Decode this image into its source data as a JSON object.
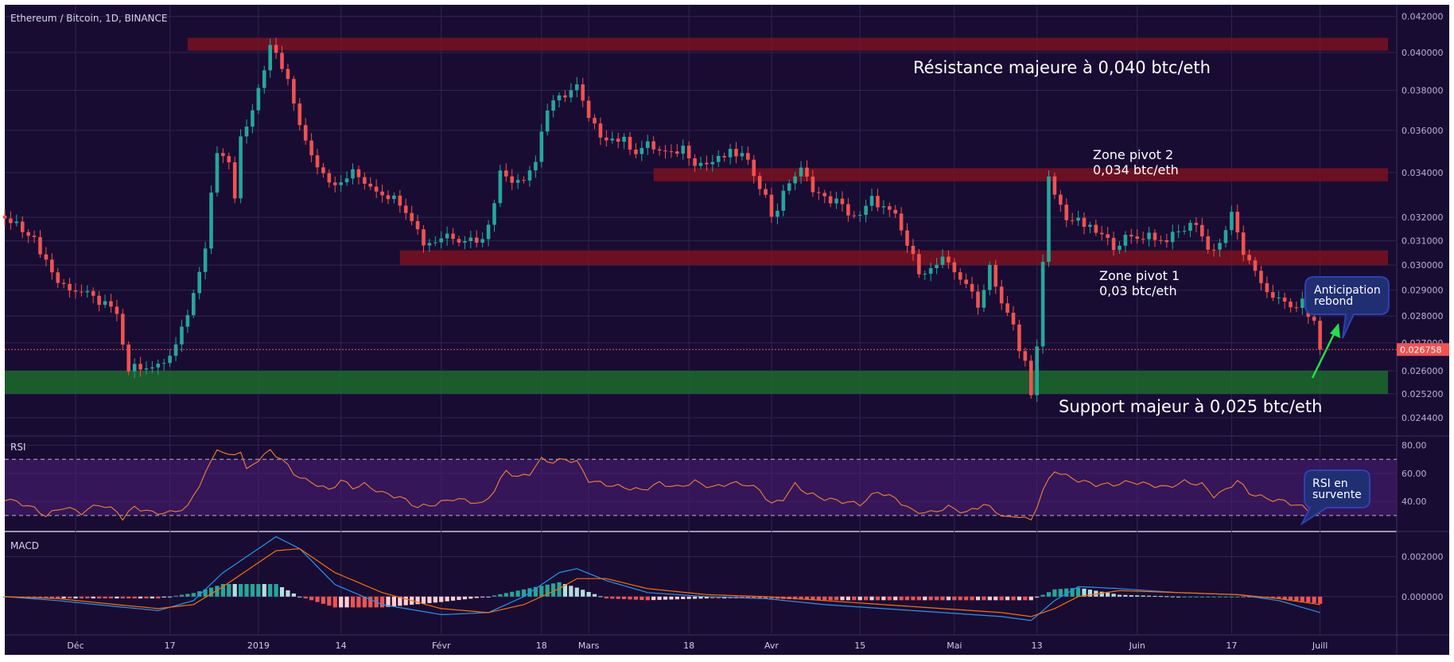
{
  "chart_data": [
    {
      "type": "candlestick",
      "title": "Ethereum / Bitcoin, 1D, BINANCE",
      "ylim": [
        0.0237,
        0.0423
      ],
      "y_scale": "log",
      "y_ticks": [
        "0.042000",
        "0.040000",
        "0.038000",
        "0.036000",
        "0.034000",
        "0.032000",
        "0.031000",
        "0.030000",
        "0.029000",
        "0.028000",
        "0.027000",
        "0.026000",
        "0.025200",
        "0.024400"
      ],
      "last_price_label": "0.026758",
      "x_ticks": [
        "Déc",
        "17",
        "2019",
        "14",
        "Févr",
        "18",
        "Mars",
        "18",
        "Avr",
        "15",
        "Mai",
        "13",
        "Juin",
        "17",
        "Juill"
      ],
      "x_tick_days": [
        8,
        24,
        39,
        53,
        70,
        87,
        95,
        112,
        126,
        141,
        157,
        171,
        188,
        204,
        219
      ],
      "x_range_days": [
        -4,
        232
      ],
      "close_by_day": [
        [
          -4,
          0.0319
        ],
        [
          0,
          0.0314
        ],
        [
          3,
          0.0302
        ],
        [
          5,
          0.0293
        ],
        [
          8,
          0.029
        ],
        [
          10,
          0.0288
        ],
        [
          13,
          0.0284
        ],
        [
          15,
          0.0281
        ],
        [
          16,
          0.0268
        ],
        [
          17,
          0.026
        ],
        [
          18,
          0.0262
        ],
        [
          20,
          0.026
        ],
        [
          23,
          0.0263
        ],
        [
          25,
          0.027
        ],
        [
          27,
          0.0282
        ],
        [
          28,
          0.029
        ],
        [
          30,
          0.0305
        ],
        [
          31,
          0.033
        ],
        [
          32,
          0.035
        ],
        [
          34,
          0.0346
        ],
        [
          35,
          0.0328
        ],
        [
          36,
          0.0355
        ],
        [
          37,
          0.036
        ],
        [
          39,
          0.038
        ],
        [
          40,
          0.039
        ],
        [
          41,
          0.0402
        ],
        [
          42,
          0.04
        ],
        [
          44,
          0.0385
        ],
        [
          45,
          0.0372
        ],
        [
          47,
          0.0355
        ],
        [
          49,
          0.0344
        ],
        [
          51,
          0.0337
        ],
        [
          52,
          0.0333
        ],
        [
          55,
          0.034
        ],
        [
          57,
          0.0336
        ],
        [
          60,
          0.0331
        ],
        [
          63,
          0.0327
        ],
        [
          65,
          0.032
        ],
        [
          67,
          0.0309
        ],
        [
          69,
          0.031
        ],
        [
          71,
          0.0313
        ],
        [
          73,
          0.0311
        ],
        [
          75,
          0.0311
        ],
        [
          77,
          0.031
        ],
        [
          78,
          0.0318
        ],
        [
          79,
          0.0328
        ],
        [
          80,
          0.034
        ],
        [
          82,
          0.0337
        ],
        [
          84,
          0.0338
        ],
        [
          86,
          0.0345
        ],
        [
          87,
          0.036
        ],
        [
          88,
          0.037
        ],
        [
          90,
          0.0376
        ],
        [
          91,
          0.0378
        ],
        [
          93,
          0.0382
        ],
        [
          95,
          0.0365
        ],
        [
          97,
          0.0358
        ],
        [
          99,
          0.0356
        ],
        [
          101,
          0.0355
        ],
        [
          103,
          0.035
        ],
        [
          105,
          0.0353
        ],
        [
          107,
          0.035
        ],
        [
          109,
          0.0348
        ],
        [
          111,
          0.0352
        ],
        [
          113,
          0.0345
        ],
        [
          115,
          0.0344
        ],
        [
          117,
          0.0346
        ],
        [
          119,
          0.0349
        ],
        [
          121,
          0.0348
        ],
        [
          123,
          0.034
        ],
        [
          125,
          0.0329
        ],
        [
          126,
          0.0321
        ],
        [
          127,
          0.0324
        ],
        [
          129,
          0.0336
        ],
        [
          131,
          0.0341
        ],
        [
          133,
          0.0333
        ],
        [
          135,
          0.0328
        ],
        [
          137,
          0.0327
        ],
        [
          139,
          0.0322
        ],
        [
          141,
          0.032
        ],
        [
          143,
          0.0328
        ],
        [
          145,
          0.0324
        ],
        [
          147,
          0.032
        ],
        [
          149,
          0.0308
        ],
        [
          151,
          0.0298
        ],
        [
          153,
          0.0298
        ],
        [
          155,
          0.0302
        ],
        [
          157,
          0.0297
        ],
        [
          159,
          0.0293
        ],
        [
          161,
          0.0283
        ],
        [
          163,
          0.03
        ],
        [
          165,
          0.0285
        ],
        [
          167,
          0.0276
        ],
        [
          168,
          0.0267
        ],
        [
          169,
          0.0263
        ],
        [
          170,
          0.0253
        ],
        [
          171,
          0.0268
        ],
        [
          172,
          0.03
        ],
        [
          173,
          0.0337
        ],
        [
          174,
          0.033
        ],
        [
          176,
          0.032
        ],
        [
          178,
          0.0318
        ],
        [
          180,
          0.0315
        ],
        [
          182,
          0.0312
        ],
        [
          184,
          0.0308
        ],
        [
          186,
          0.0311
        ],
        [
          188,
          0.0311
        ],
        [
          190,
          0.0313
        ],
        [
          192,
          0.031
        ],
        [
          194,
          0.0312
        ],
        [
          196,
          0.0315
        ],
        [
          198,
          0.0318
        ],
        [
          199,
          0.0312
        ],
        [
          200,
          0.0306
        ],
        [
          202,
          0.0309
        ],
        [
          204,
          0.0321
        ],
        [
          206,
          0.0305
        ],
        [
          208,
          0.0296
        ],
        [
          210,
          0.029
        ],
        [
          212,
          0.0286
        ],
        [
          214,
          0.0283
        ],
        [
          216,
          0.0285
        ],
        [
          218,
          0.0277
        ],
        [
          219,
          0.0268
        ]
      ],
      "zones": [
        {
          "label": "Résistance majeure à 0,040 btc/eth",
          "low": 0.0401,
          "high": 0.0408,
          "from_day": 27,
          "color": "#7a1220"
        },
        {
          "label": "Zone pivot 2\n0,034 btc/eth",
          "low": 0.0336,
          "high": 0.0342,
          "from_day": 106,
          "color": "#7a1220"
        },
        {
          "label": "Zone pivot 1\n0,03 btc/eth",
          "low": 0.03,
          "high": 0.0306,
          "from_day": 63,
          "color": "#7a1220"
        },
        {
          "label": "Support majeur à 0,025 btc/eth",
          "low": 0.0252,
          "high": 0.026,
          "from_day": -4,
          "color": "#1b6b2a"
        }
      ],
      "annotations": [
        {
          "text": "Anticipation\nrebond"
        },
        {
          "text": "RSI en\nsurvente"
        }
      ],
      "colors": {
        "up": "#26a69a",
        "down": "#ef5350",
        "background": "#190c33",
        "grid": "#2f2550"
      }
    },
    {
      "type": "line",
      "title": "RSI",
      "ylim": [
        22,
        82
      ],
      "y_ticks": [
        "80.00",
        "60.00",
        "40.00"
      ],
      "bands": [
        30,
        70
      ],
      "series": [
        {
          "color": "#e8782f",
          "values_by_day": [
            [
              -4,
              42
            ],
            [
              0,
              37
            ],
            [
              3,
              30
            ],
            [
              6,
              36
            ],
            [
              9,
              32
            ],
            [
              12,
              38
            ],
            [
              15,
              33
            ],
            [
              16,
              28
            ],
            [
              18,
              36
            ],
            [
              21,
              32
            ],
            [
              24,
              32
            ],
            [
              27,
              36
            ],
            [
              29,
              52
            ],
            [
              31,
              68
            ],
            [
              32,
              78
            ],
            [
              34,
              72
            ],
            [
              36,
              76
            ],
            [
              37,
              62
            ],
            [
              39,
              70
            ],
            [
              41,
              76
            ],
            [
              43,
              70
            ],
            [
              45,
              60
            ],
            [
              47,
              55
            ],
            [
              49,
              52
            ],
            [
              51,
              48
            ],
            [
              53,
              55
            ],
            [
              55,
              50
            ],
            [
              57,
              52
            ],
            [
              60,
              46
            ],
            [
              63,
              43
            ],
            [
              66,
              36
            ],
            [
              69,
              38
            ],
            [
              72,
              42
            ],
            [
              75,
              40
            ],
            [
              77,
              38
            ],
            [
              79,
              48
            ],
            [
              81,
              62
            ],
            [
              83,
              57
            ],
            [
              85,
              60
            ],
            [
              87,
              70
            ],
            [
              89,
              68
            ],
            [
              91,
              70
            ],
            [
              93,
              68
            ],
            [
              95,
              55
            ],
            [
              98,
              52
            ],
            [
              101,
              50
            ],
            [
              104,
              48
            ],
            [
              107,
              53
            ],
            [
              110,
              50
            ],
            [
              113,
              54
            ],
            [
              116,
              50
            ],
            [
              119,
              53
            ],
            [
              122,
              52
            ],
            [
              124,
              48
            ],
            [
              126,
              38
            ],
            [
              128,
              42
            ],
            [
              130,
              52
            ],
            [
              132,
              46
            ],
            [
              135,
              42
            ],
            [
              138,
              40
            ],
            [
              141,
              38
            ],
            [
              144,
              47
            ],
            [
              147,
              42
            ],
            [
              150,
              33
            ],
            [
              153,
              32
            ],
            [
              156,
              36
            ],
            [
              159,
              32
            ],
            [
              162,
              38
            ],
            [
              164,
              33
            ],
            [
              166,
              28
            ],
            [
              168,
              30
            ],
            [
              170,
              26
            ],
            [
              172,
              48
            ],
            [
              174,
              62
            ],
            [
              176,
              58
            ],
            [
              178,
              55
            ],
            [
              181,
              52
            ],
            [
              184,
              52
            ],
            [
              187,
              54
            ],
            [
              190,
              52
            ],
            [
              193,
              50
            ],
            [
              196,
              54
            ],
            [
              199,
              52
            ],
            [
              201,
              44
            ],
            [
              203,
              48
            ],
            [
              205,
              55
            ],
            [
              207,
              46
            ],
            [
              210,
              42
            ],
            [
              213,
              40
            ],
            [
              216,
              36
            ],
            [
              219,
              30
            ]
          ]
        }
      ]
    },
    {
      "type": "macd",
      "title": "MACD",
      "ylim": [
        -0.0018,
        0.0031
      ],
      "y_ticks": [
        "0.002000",
        "0.000000"
      ],
      "series": [
        {
          "name": "",
          "color": "#2196f3",
          "values_by_day": [
            [
              -4,
              0
            ],
            [
              5,
              -0.0002
            ],
            [
              15,
              -0.0005
            ],
            [
              22,
              -0.0007
            ],
            [
              28,
              -0.0002
            ],
            [
              33,
              0.0012
            ],
            [
              38,
              0.0022
            ],
            [
              42,
              0.003
            ],
            [
              46,
              0.0024
            ],
            [
              52,
              0.0006
            ],
            [
              60,
              -0.0004
            ],
            [
              70,
              -0.0009
            ],
            [
              78,
              -0.0008
            ],
            [
              84,
              0.0
            ],
            [
              90,
              0.0012
            ],
            [
              93,
              0.0014
            ],
            [
              98,
              0.0008
            ],
            [
              105,
              0.0002
            ],
            [
              115,
              0.0
            ],
            [
              125,
              -0.0001
            ],
            [
              135,
              -0.0004
            ],
            [
              145,
              -0.0006
            ],
            [
              155,
              -0.0008
            ],
            [
              165,
              -0.001
            ],
            [
              170,
              -0.0012
            ],
            [
              174,
              -0.0002
            ],
            [
              178,
              0.0005
            ],
            [
              185,
              0.0004
            ],
            [
              195,
              0.0002
            ],
            [
              205,
              0.0001
            ],
            [
              212,
              -0.0002
            ],
            [
              219,
              -0.0008
            ]
          ]
        },
        {
          "name": "",
          "color": "#ff6d00",
          "values_by_day": [
            [
              -4,
              0
            ],
            [
              5,
              -0.0001
            ],
            [
              15,
              -0.0004
            ],
            [
              22,
              -0.0006
            ],
            [
              28,
              -0.0004
            ],
            [
              33,
              0.0005
            ],
            [
              38,
              0.0015
            ],
            [
              42,
              0.0023
            ],
            [
              46,
              0.0024
            ],
            [
              52,
              0.0012
            ],
            [
              60,
              0.0002
            ],
            [
              70,
              -0.0006
            ],
            [
              78,
              -0.0008
            ],
            [
              84,
              -0.0004
            ],
            [
              90,
              0.0004
            ],
            [
              93,
              0.0009
            ],
            [
              98,
              0.0009
            ],
            [
              105,
              0.0004
            ],
            [
              115,
              0.0001
            ],
            [
              125,
              0.0
            ],
            [
              135,
              -0.0002
            ],
            [
              145,
              -0.0004
            ],
            [
              155,
              -0.0006
            ],
            [
              165,
              -0.0008
            ],
            [
              170,
              -0.001
            ],
            [
              174,
              -0.0006
            ],
            [
              178,
              0.0
            ],
            [
              185,
              0.0003
            ],
            [
              195,
              0.0002
            ],
            [
              205,
              0.0001
            ],
            [
              212,
              -0.0001
            ],
            [
              219,
              -0.0004
            ]
          ]
        }
      ],
      "colors": {
        "hist_pos_strong": "#26a69a",
        "hist_pos_weak": "#b2dfdb",
        "hist_neg_strong": "#ef5350",
        "hist_neg_weak": "#ffcdd2"
      }
    }
  ]
}
